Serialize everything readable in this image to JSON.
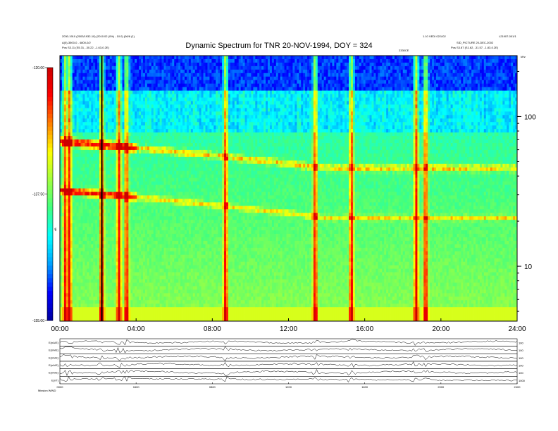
{
  "header": {
    "left_line1": "2030-1910 (2003/1932-10) (2010.02 (0%) - 10.0) (06/6 (1)",
    "left_line2": "A(0)-3500-0 - 4800-0/2",
    "left_line3": "Pos  S3.11 (S5.31, -30.22, -1.63-0.2E)",
    "right_line1": "1.10 VEDI 02/1/02",
    "right_line2": "L21907-001/1",
    "right_line3": "SID_PICTURE 20-DEC-2002",
    "right_line4": "Pos  S3.87 (S1.62, -31.57, -1.83-0.2E)",
    "mid_label": "2330CE"
  },
  "chart_data": [
    {
      "type": "heatmap",
      "title": "Dynamic Spectrum for TNR 20-NOV-1994, DOY = 324",
      "x_ticks": [
        "00:00",
        "04:00",
        "08:00",
        "12:00",
        "16:00",
        "20:00",
        "24:00"
      ],
      "x_range_hours": [
        0,
        24
      ],
      "y_label": "kHz",
      "y_scale": "log",
      "y_range_khz": [
        4.3,
        255
      ],
      "y_ticks": [
        "100",
        "10"
      ],
      "colorbar": {
        "label": "dB",
        "ticks": [
          "-120.00",
          "-137.50",
          "-155.00"
        ],
        "range_db": [
          -155.0,
          -120.0
        ],
        "colors": [
          "#0000a0",
          "#0000ff",
          "#00a0ff",
          "#00ffff",
          "#40ff80",
          "#a0ff40",
          "#ffff00",
          "#ff8000",
          "#ff0000",
          "#cc0000"
        ]
      },
      "bands": [
        {
          "name": "upper emission band",
          "start_khz": 68,
          "end_khz": 45
        },
        {
          "name": "lower emission band",
          "start_khz": 32,
          "end_khz": 21
        }
      ],
      "bursts_hours": [
        0.3,
        0.5,
        2.2,
        3.1,
        3.5,
        8.7,
        13.4,
        15.3,
        18.7,
        19.2
      ],
      "marker_hours": [
        2.2
      ]
    },
    {
      "type": "line",
      "panels": [
        "E(nA/E)",
        "E(nA/E)",
        "E(nA/E)",
        "E(nA/E)",
        "E(nA/E)",
        "E(nT)"
      ],
      "right_ticks": [
        "100",
        "100",
        "100",
        "100",
        "100",
        "1000"
      ],
      "x_ticks": [
        "0000",
        "0400",
        "0800",
        "1200",
        "1600",
        "2000",
        "2400"
      ],
      "footer": "Mission WIND"
    }
  ]
}
